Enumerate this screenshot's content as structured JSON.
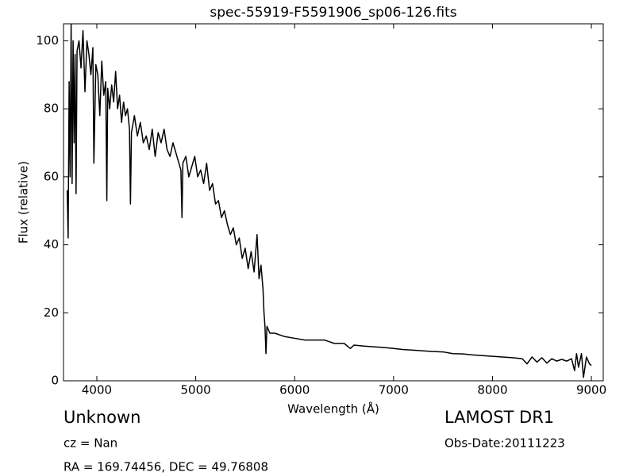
{
  "chart_data": {
    "type": "line",
    "title": "spec-55919-F5591906_sp06-126.fits",
    "x_label": "Wavelength (Å)",
    "y_label": "Flux (relative)",
    "xlim": [
      3663,
      9120
    ],
    "ylim": [
      0,
      105
    ],
    "xticks": [
      4000,
      5000,
      6000,
      7000,
      8000,
      9000
    ],
    "yticks": [
      0,
      20,
      40,
      60,
      80,
      100
    ],
    "grid": false,
    "x": [
      3700,
      3710,
      3720,
      3730,
      3740,
      3750,
      3760,
      3770,
      3780,
      3790,
      3800,
      3820,
      3840,
      3860,
      3880,
      3900,
      3920,
      3940,
      3960,
      3970,
      3990,
      4010,
      4030,
      4050,
      4070,
      4090,
      4101,
      4110,
      4130,
      4150,
      4170,
      4190,
      4210,
      4230,
      4250,
      4270,
      4290,
      4310,
      4330,
      4340,
      4350,
      4380,
      4410,
      4440,
      4470,
      4500,
      4530,
      4560,
      4590,
      4620,
      4650,
      4680,
      4710,
      4740,
      4770,
      4800,
      4830,
      4850,
      4861,
      4870,
      4900,
      4930,
      4960,
      4990,
      5020,
      5050,
      5080,
      5110,
      5140,
      5170,
      5200,
      5230,
      5260,
      5290,
      5320,
      5350,
      5380,
      5410,
      5440,
      5470,
      5500,
      5530,
      5560,
      5590,
      5620,
      5640,
      5660,
      5680,
      5690,
      5700,
      5710,
      5720,
      5750,
      5800,
      5900,
      6000,
      6100,
      6200,
      6300,
      6400,
      6500,
      6563,
      6600,
      6700,
      6800,
      6900,
      7000,
      7100,
      7200,
      7300,
      7400,
      7500,
      7600,
      7700,
      7800,
      7900,
      8000,
      8100,
      8200,
      8300,
      8350,
      8400,
      8450,
      8500,
      8550,
      8600,
      8650,
      8700,
      8750,
      8800,
      8830,
      8850,
      8870,
      8900,
      8920,
      8950,
      8980,
      9000
    ],
    "series": [
      {
        "color": "#000000",
        "values": [
          56,
          42,
          88,
          60,
          105,
          58,
          100,
          70,
          96,
          55,
          97,
          100,
          92,
          103,
          85,
          100,
          96,
          90,
          98,
          64,
          93,
          90,
          78,
          94,
          84,
          88,
          53,
          86,
          80,
          87,
          82,
          91,
          80,
          84,
          76,
          82,
          78,
          80,
          74,
          52,
          73,
          78,
          72,
          76,
          70,
          72,
          68,
          74,
          66,
          73,
          70,
          74,
          68,
          66,
          70,
          67,
          64,
          62,
          48,
          64,
          66,
          60,
          63,
          66,
          60,
          62,
          58,
          64,
          56,
          58,
          52,
          53,
          48,
          50,
          46,
          43,
          45,
          40,
          42,
          36,
          39,
          33,
          38,
          32,
          43,
          30,
          34,
          27,
          20,
          16,
          8,
          16,
          14,
          14,
          13,
          12.5,
          12,
          12,
          12,
          11,
          11,
          9.5,
          10.5,
          10.2,
          10,
          9.8,
          9.5,
          9.2,
          9,
          8.8,
          8.6,
          8.5,
          8,
          7.9,
          7.6,
          7.4,
          7.2,
          7,
          6.8,
          6.5,
          5,
          7,
          5.5,
          6.8,
          5.2,
          6.5,
          5.8,
          6.3,
          5.8,
          6.5,
          3,
          8,
          4,
          8,
          1,
          7,
          5,
          4.5
        ]
      }
    ],
    "annotations": [
      "Unknown",
      "LAMOST DR1",
      "cz = Nan",
      "Obs-Date:20111223",
      "RA = 169.74456, DEC = 49.76808"
    ]
  }
}
